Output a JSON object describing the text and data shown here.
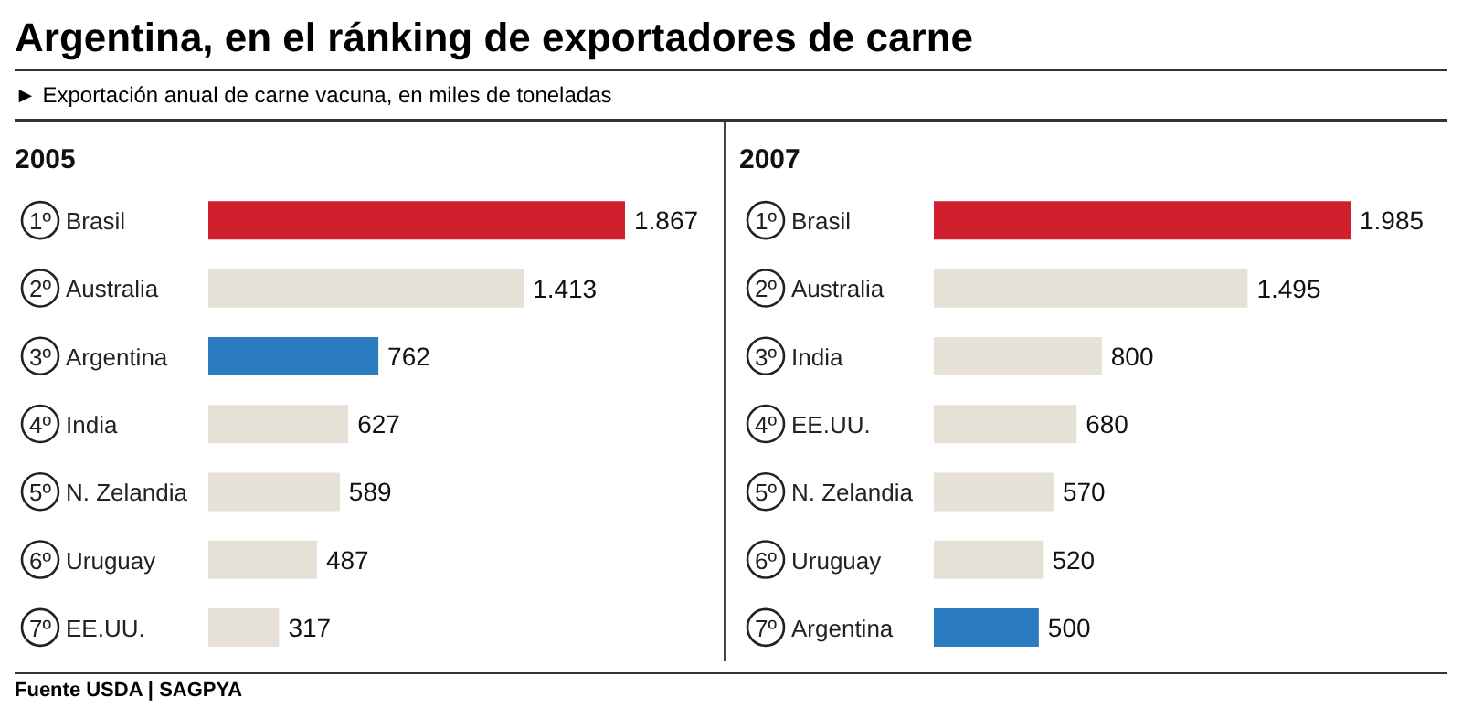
{
  "chart_data": [
    {
      "type": "bar",
      "orientation": "horizontal",
      "title": "2005",
      "annotations": [
        "Argentina, en el ránking de exportadores de carne",
        "► Exportación anual de carne vacuna, en miles de toneladas",
        "Fuente USDA | SAGPYA"
      ],
      "categories": [
        "1º Brasil",
        "2º Australia",
        "3º Argentina",
        "4º India",
        "5º N. Zelandia",
        "6º Uruguay",
        "7º EE.UU."
      ],
      "values": [
        1867,
        1413,
        762,
        627,
        589,
        487,
        317
      ],
      "value_labels": [
        "1.867",
        "1.413",
        "762",
        "627",
        "589",
        "487",
        "317"
      ],
      "colors": [
        "#d0202e",
        "#e6e1d6",
        "#2a7bc0",
        "#e6e1d6",
        "#e6e1d6",
        "#e6e1d6",
        "#e6e1d6"
      ]
    },
    {
      "type": "bar",
      "orientation": "horizontal",
      "title": "2007",
      "categories": [
        "1º Brasil",
        "2º Australia",
        "3º India",
        "4º EE.UU.",
        "5º N. Zelandia",
        "6º Uruguay",
        "7º Argentina"
      ],
      "values": [
        1985,
        1495,
        800,
        680,
        570,
        520,
        500
      ],
      "value_labels": [
        "1.985",
        "1.495",
        "800",
        "680",
        "570",
        "520",
        "500"
      ],
      "colors": [
        "#d0202e",
        "#e6e1d6",
        "#e6e1d6",
        "#e6e1d6",
        "#e6e1d6",
        "#e6e1d6",
        "#2a7bc0"
      ]
    }
  ]
}
